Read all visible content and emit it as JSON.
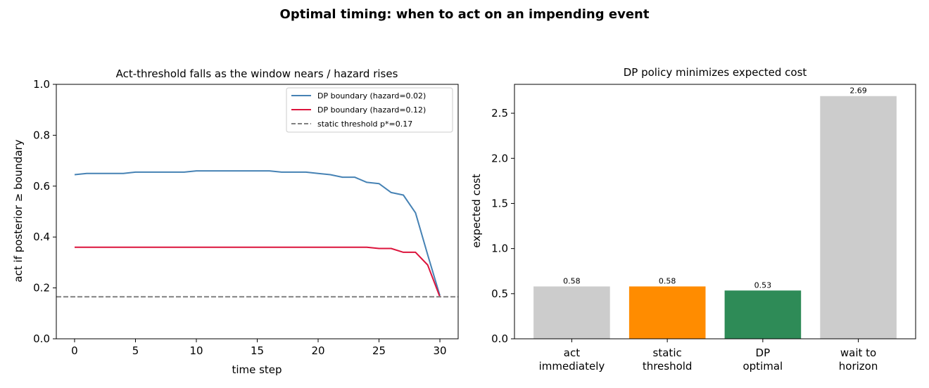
{
  "suptitle": "Optimal timing: when to act on an impending event",
  "chart_data": [
    {
      "type": "line",
      "title": "Act-threshold falls as the window nears / hazard rises",
      "xlabel": "time step",
      "ylabel": "act if posterior ≥ boundary",
      "xlim": [
        -1.5,
        31.5
      ],
      "ylim": [
        0.0,
        1.0
      ],
      "xticks": [
        0,
        5,
        10,
        15,
        20,
        25,
        30
      ],
      "yticks": [
        0.0,
        0.2,
        0.4,
        0.6,
        0.8,
        1.0
      ],
      "grid": false,
      "legend_position": "top-right",
      "x": [
        0,
        1,
        2,
        3,
        4,
        5,
        6,
        7,
        8,
        9,
        10,
        11,
        12,
        13,
        14,
        15,
        16,
        17,
        18,
        19,
        20,
        21,
        22,
        23,
        24,
        25,
        26,
        27,
        28,
        29,
        30
      ],
      "series": [
        {
          "name": "DP boundary (hazard=0.02)",
          "color": "#4682b4",
          "style": "solid",
          "values": [
            0.645,
            0.65,
            0.65,
            0.65,
            0.65,
            0.655,
            0.655,
            0.655,
            0.655,
            0.655,
            0.66,
            0.66,
            0.66,
            0.66,
            0.66,
            0.66,
            0.66,
            0.655,
            0.655,
            0.655,
            0.65,
            0.645,
            0.635,
            0.635,
            0.615,
            0.61,
            0.575,
            0.565,
            0.495,
            0.33,
            0.17
          ]
        },
        {
          "name": "DP boundary (hazard=0.12)",
          "color": "#dc143c",
          "style": "solid",
          "values": [
            0.36,
            0.36,
            0.36,
            0.36,
            0.36,
            0.36,
            0.36,
            0.36,
            0.36,
            0.36,
            0.36,
            0.36,
            0.36,
            0.36,
            0.36,
            0.36,
            0.36,
            0.36,
            0.36,
            0.36,
            0.36,
            0.36,
            0.36,
            0.36,
            0.36,
            0.355,
            0.355,
            0.34,
            0.34,
            0.29,
            0.165
          ]
        }
      ],
      "hline": {
        "name": "static threshold p*=0.17",
        "value": 0.165,
        "color": "#808080",
        "style": "dashed"
      }
    },
    {
      "type": "bar",
      "title": "DP policy minimizes expected cost",
      "xlabel": "",
      "ylabel": "expected cost",
      "ylim": [
        0.0,
        2.82
      ],
      "yticks": [
        0.0,
        0.5,
        1.0,
        1.5,
        2.0,
        2.5
      ],
      "grid": false,
      "categories": [
        [
          "act",
          "immediately"
        ],
        [
          "static",
          "threshold"
        ],
        [
          "DP",
          "optimal"
        ],
        [
          "wait to",
          "horizon"
        ]
      ],
      "values": [
        0.58,
        0.58,
        0.535,
        2.69
      ],
      "value_labels": [
        "0.58",
        "0.58",
        "0.53",
        "2.69"
      ],
      "colors": [
        "#cccccc",
        "#ff8c00",
        "#2e8b57",
        "#cccccc"
      ]
    }
  ]
}
